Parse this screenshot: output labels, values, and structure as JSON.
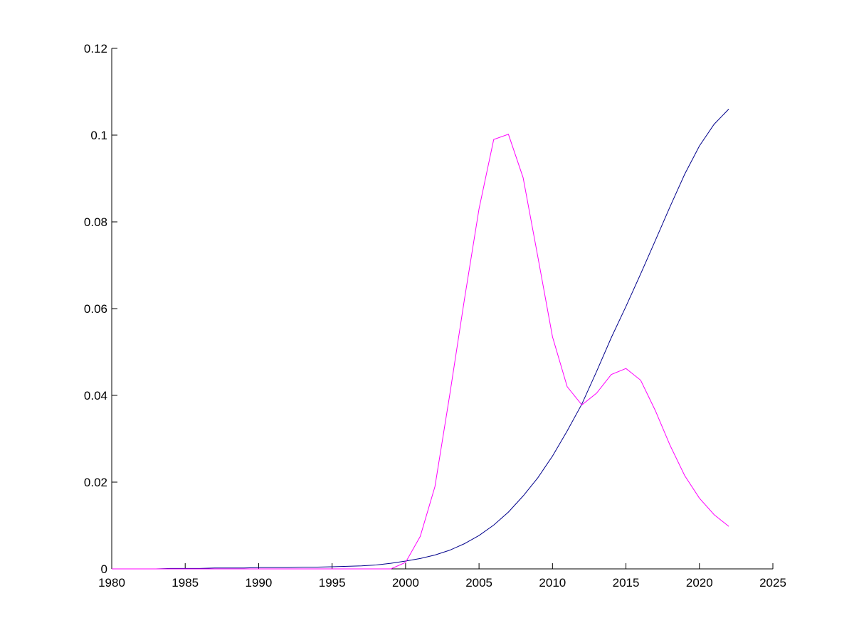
{
  "chart_data": {
    "type": "line",
    "x": [
      1980,
      1981,
      1982,
      1983,
      1984,
      1985,
      1986,
      1987,
      1988,
      1989,
      1990,
      1991,
      1992,
      1993,
      1994,
      1995,
      1996,
      1997,
      1998,
      1999,
      2000,
      2001,
      2002,
      2003,
      2004,
      2005,
      2006,
      2007,
      2008,
      2009,
      2010,
      2011,
      2012,
      2013,
      2014,
      2015,
      2016,
      2017,
      2018,
      2019,
      2020,
      2021,
      2022
    ],
    "series": [
      {
        "color": "#00008b",
        "values": [
          0,
          0,
          0,
          0,
          0.0001,
          0.0001,
          0.0001,
          0.0002,
          0.0002,
          0.0002,
          0.0003,
          0.0003,
          0.0003,
          0.0004,
          0.0004,
          0.0005,
          0.0006,
          0.0007,
          0.0009,
          0.0013,
          0.0018,
          0.0024,
          0.0032,
          0.0043,
          0.0058,
          0.0077,
          0.0101,
          0.0131,
          0.0168,
          0.021,
          0.026,
          0.0318,
          0.038,
          0.0455,
          0.0533,
          0.0605,
          0.068,
          0.0757,
          0.0835,
          0.091,
          0.0975,
          0.1025,
          0.106
        ]
      },
      {
        "color": "#ff00ff",
        "values": [
          0,
          0,
          0,
          0,
          0,
          0,
          0,
          0,
          0,
          0,
          0,
          0,
          0,
          0,
          0,
          0,
          0,
          0,
          0,
          0,
          0.0015,
          0.0075,
          0.019,
          0.04,
          0.062,
          0.083,
          0.099,
          0.1002,
          0.0902,
          0.072,
          0.0535,
          0.042,
          0.0378,
          0.0405,
          0.0448,
          0.0462,
          0.0435,
          0.0365,
          0.0285,
          0.0215,
          0.0163,
          0.0125,
          0.0098
        ]
      }
    ],
    "xlim": [
      1980,
      2025
    ],
    "xticks": [
      1980,
      1985,
      1990,
      1995,
      2000,
      2005,
      2010,
      2015,
      2020,
      2025
    ],
    "ylim": [
      0,
      0.12
    ],
    "yticks": [
      0,
      0.02,
      0.04,
      0.06,
      0.08,
      0.1,
      0.12
    ]
  }
}
